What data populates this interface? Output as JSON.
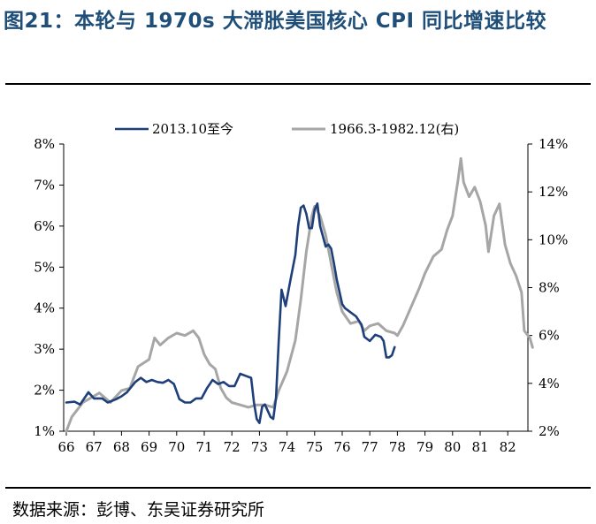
{
  "title": "图21：本轮与 1970s 大滞胀美国核心 CPI 同比增速比较",
  "source": "数据来源：彭博、东吴证券研究所",
  "colors": {
    "series_current": "#1f3f7a",
    "series_1970s": "#a6a6a6",
    "title": "#1f4e79"
  },
  "chart_data": {
    "type": "line",
    "x_tick_labels": [
      "66",
      "67",
      "68",
      "69",
      "70",
      "71",
      "72",
      "73",
      "74",
      "75",
      "76",
      "77",
      "78",
      "79",
      "80",
      "81",
      "82"
    ],
    "y_left": {
      "ticks": [
        "1%",
        "2%",
        "3%",
        "4%",
        "5%",
        "6%",
        "7%",
        "8%"
      ],
      "ylim": [
        1,
        8
      ]
    },
    "y_right": {
      "ticks": [
        "2%",
        "4%",
        "6%",
        "8%",
        "10%",
        "12%",
        "14%"
      ],
      "ylim": [
        2,
        14
      ]
    },
    "legend_placement": "top",
    "series": [
      {
        "name": "2013.10至今",
        "axis": "left",
        "points": [
          [
            66.0,
            1.7
          ],
          [
            66.3,
            1.72
          ],
          [
            66.5,
            1.65
          ],
          [
            66.8,
            1.95
          ],
          [
            67.0,
            1.8
          ],
          [
            67.3,
            1.8
          ],
          [
            67.5,
            1.7
          ],
          [
            67.8,
            1.78
          ],
          [
            68.0,
            1.85
          ],
          [
            68.2,
            1.95
          ],
          [
            68.5,
            2.2
          ],
          [
            68.7,
            2.3
          ],
          [
            68.9,
            2.2
          ],
          [
            69.1,
            2.25
          ],
          [
            69.3,
            2.2
          ],
          [
            69.5,
            2.18
          ],
          [
            69.7,
            2.25
          ],
          [
            69.9,
            2.15
          ],
          [
            70.1,
            1.78
          ],
          [
            70.3,
            1.7
          ],
          [
            70.5,
            1.7
          ],
          [
            70.7,
            1.8
          ],
          [
            70.9,
            1.8
          ],
          [
            71.1,
            2.05
          ],
          [
            71.3,
            2.25
          ],
          [
            71.5,
            2.15
          ],
          [
            71.7,
            2.2
          ],
          [
            71.9,
            2.1
          ],
          [
            72.1,
            2.1
          ],
          [
            72.3,
            2.4
          ],
          [
            72.5,
            2.35
          ],
          [
            72.7,
            2.3
          ],
          [
            72.8,
            1.7
          ],
          [
            72.9,
            1.3
          ],
          [
            73.0,
            1.2
          ],
          [
            73.1,
            1.6
          ],
          [
            73.2,
            1.65
          ],
          [
            73.4,
            1.35
          ],
          [
            73.5,
            1.3
          ],
          [
            73.6,
            1.8
          ],
          [
            73.7,
            3.2
          ],
          [
            73.8,
            4.45
          ],
          [
            73.95,
            4.05
          ],
          [
            74.1,
            4.6
          ],
          [
            74.3,
            5.3
          ],
          [
            74.4,
            6.0
          ],
          [
            74.5,
            6.45
          ],
          [
            74.6,
            6.5
          ],
          [
            74.7,
            6.3
          ],
          [
            74.8,
            5.95
          ],
          [
            74.9,
            5.95
          ],
          [
            75.0,
            6.4
          ],
          [
            75.1,
            6.55
          ],
          [
            75.2,
            6.0
          ],
          [
            75.3,
            5.75
          ],
          [
            75.4,
            5.5
          ],
          [
            75.5,
            5.55
          ],
          [
            75.6,
            5.45
          ],
          [
            75.7,
            5.1
          ],
          [
            75.8,
            4.7
          ],
          [
            75.9,
            4.4
          ],
          [
            76.0,
            4.1
          ],
          [
            76.1,
            4.0
          ],
          [
            76.3,
            3.9
          ],
          [
            76.5,
            3.8
          ],
          [
            76.7,
            3.6
          ],
          [
            76.8,
            3.3
          ],
          [
            77.0,
            3.2
          ],
          [
            77.2,
            3.35
          ],
          [
            77.4,
            3.3
          ],
          [
            77.5,
            3.2
          ],
          [
            77.6,
            2.8
          ],
          [
            77.7,
            2.8
          ],
          [
            77.8,
            2.85
          ],
          [
            77.9,
            3.05
          ]
        ]
      },
      {
        "name": "1966.3-1982.12(右)",
        "axis": "right",
        "points": [
          [
            66.0,
            2.0
          ],
          [
            66.2,
            2.6
          ],
          [
            66.4,
            2.9
          ],
          [
            66.6,
            3.2
          ],
          [
            66.9,
            3.4
          ],
          [
            67.2,
            3.6
          ],
          [
            67.6,
            3.2
          ],
          [
            68.0,
            3.7
          ],
          [
            68.3,
            3.8
          ],
          [
            68.6,
            4.7
          ],
          [
            69.0,
            5.0
          ],
          [
            69.2,
            5.9
          ],
          [
            69.4,
            5.6
          ],
          [
            69.7,
            5.9
          ],
          [
            70.0,
            6.1
          ],
          [
            70.3,
            6.0
          ],
          [
            70.6,
            6.2
          ],
          [
            70.8,
            5.9
          ],
          [
            71.0,
            5.2
          ],
          [
            71.2,
            4.8
          ],
          [
            71.4,
            4.6
          ],
          [
            71.6,
            3.8
          ],
          [
            71.8,
            3.4
          ],
          [
            72.0,
            3.2
          ],
          [
            72.3,
            3.1
          ],
          [
            72.6,
            3.0
          ],
          [
            72.9,
            3.1
          ],
          [
            73.2,
            3.1
          ],
          [
            73.5,
            3.0
          ],
          [
            73.7,
            3.7
          ],
          [
            74.0,
            4.5
          ],
          [
            74.3,
            5.8
          ],
          [
            74.5,
            7.5
          ],
          [
            74.7,
            9.5
          ],
          [
            74.9,
            11.0
          ],
          [
            75.0,
            11.4
          ],
          [
            75.2,
            11.0
          ],
          [
            75.4,
            10.2
          ],
          [
            75.6,
            9.0
          ],
          [
            75.8,
            7.8
          ],
          [
            76.0,
            7.0
          ],
          [
            76.3,
            6.5
          ],
          [
            76.6,
            6.6
          ],
          [
            76.8,
            6.2
          ],
          [
            77.0,
            6.4
          ],
          [
            77.3,
            6.5
          ],
          [
            77.6,
            6.2
          ],
          [
            77.9,
            6.1
          ],
          [
            78.0,
            6.0
          ],
          [
            78.2,
            6.4
          ],
          [
            78.5,
            7.2
          ],
          [
            78.8,
            8.0
          ],
          [
            79.0,
            8.6
          ],
          [
            79.3,
            9.3
          ],
          [
            79.6,
            9.6
          ],
          [
            79.8,
            10.4
          ],
          [
            80.0,
            11.0
          ],
          [
            80.2,
            12.5
          ],
          [
            80.3,
            13.4
          ],
          [
            80.4,
            12.4
          ],
          [
            80.6,
            11.8
          ],
          [
            80.8,
            12.2
          ],
          [
            81.0,
            11.6
          ],
          [
            81.2,
            10.6
          ],
          [
            81.3,
            9.5
          ],
          [
            81.5,
            11.0
          ],
          [
            81.7,
            11.5
          ],
          [
            81.9,
            9.8
          ],
          [
            82.1,
            9.0
          ],
          [
            82.3,
            8.5
          ],
          [
            82.5,
            7.8
          ],
          [
            82.6,
            6.2
          ],
          [
            82.8,
            5.9
          ],
          [
            82.9,
            5.5
          ]
        ]
      }
    ]
  }
}
